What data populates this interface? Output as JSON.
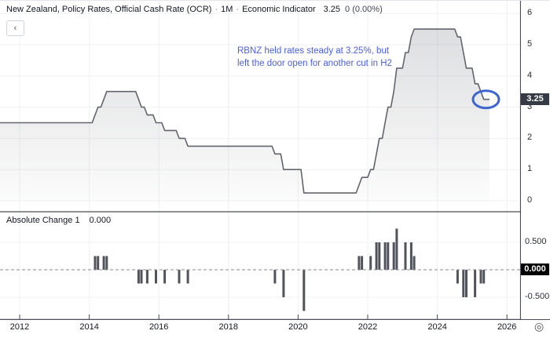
{
  "header": {
    "title": "New Zealand, Policy Rates, Official Cash Rate (OCR)",
    "separator": "·",
    "interval": "1M",
    "type_label": "Economic Indicator",
    "last_value": "3.25",
    "change": "0 (0.00%)",
    "back_button": "‹"
  },
  "annotation": {
    "line1": "RBNZ held rates steady at 3.25%, but",
    "line2": "left the door open for another cut in H2",
    "color": "#4a5fd6"
  },
  "pane2_header": {
    "label": "Absolute Change 1",
    "value": "0.000"
  },
  "price_scale": {
    "top_labels": [
      "6",
      "5",
      "4",
      "3",
      "2",
      "1",
      "0"
    ],
    "bottom_labels": [
      "0.500",
      "0.000",
      "-0.500"
    ],
    "price_badge": "3.25",
    "change_badge": "0.000"
  },
  "time_axis": {
    "labels": [
      "2012",
      "2014",
      "2016",
      "2018",
      "2020",
      "2022",
      "2024",
      "2026"
    ]
  },
  "icons": {
    "realtime_target": "◎"
  },
  "colors": {
    "line": "#62656e",
    "area_top": "rgba(90,93,102,0.22)",
    "area_bottom": "rgba(90,93,102,0.02)",
    "bars": "#50535b",
    "grid": "#eef0f3",
    "zero_dash": "#85888f",
    "border": "#4a4d54",
    "tick": "#4a4d54",
    "ellipse": "#3d63d0",
    "annotation_text": "#4a5fd6",
    "badge_price_bg": "#363a45",
    "badge_change_bg": "#000000"
  },
  "chart_data": {
    "type": "line",
    "title": "New Zealand Official Cash Rate (OCR), monthly, with absolute monthly change histogram",
    "start": "2011-05",
    "start_value": 2.5,
    "end": "2025-07",
    "last_value": 3.25,
    "last_change": 0.0,
    "ocr_events": [
      [
        "2014-03",
        2.75
      ],
      [
        "2014-04",
        3.0
      ],
      [
        "2014-06",
        3.25
      ],
      [
        "2014-07",
        3.5
      ],
      [
        "2015-06",
        3.25
      ],
      [
        "2015-07",
        3.0
      ],
      [
        "2015-09",
        2.75
      ],
      [
        "2015-12",
        2.5
      ],
      [
        "2016-03",
        2.25
      ],
      [
        "2016-08",
        2.0
      ],
      [
        "2016-11",
        1.75
      ],
      [
        "2019-05",
        1.5
      ],
      [
        "2019-08",
        1.0
      ],
      [
        "2020-03",
        0.25
      ],
      [
        "2021-10",
        0.5
      ],
      [
        "2021-11",
        0.75
      ],
      [
        "2022-02",
        1.0
      ],
      [
        "2022-04",
        1.5
      ],
      [
        "2022-05",
        2.0
      ],
      [
        "2022-07",
        2.5
      ],
      [
        "2022-08",
        3.0
      ],
      [
        "2022-10",
        3.5
      ],
      [
        "2022-11",
        4.25
      ],
      [
        "2023-02",
        4.75
      ],
      [
        "2023-04",
        5.25
      ],
      [
        "2023-05",
        5.5
      ],
      [
        "2024-08",
        5.25
      ],
      [
        "2024-10",
        4.75
      ],
      [
        "2024-11",
        4.25
      ],
      [
        "2025-02",
        3.75
      ],
      [
        "2025-04",
        3.5
      ],
      [
        "2025-05",
        3.25
      ]
    ],
    "panes": [
      {
        "name": "ocr-rate",
        "type": "area",
        "yticks": [
          0,
          1,
          2,
          3,
          4,
          5,
          6
        ],
        "ylabel": "",
        "highlighted_last_value": 3.25
      },
      {
        "name": "absolute-change",
        "type": "bar",
        "yticks": [
          0.5,
          0,
          -0.5
        ],
        "zero_line": "dashed",
        "last_value": 0.0
      }
    ],
    "x_ticks_years": [
      2012,
      2014,
      2016,
      2018,
      2020,
      2022,
      2024,
      2026
    ],
    "grid": true,
    "legend_position": "none"
  }
}
